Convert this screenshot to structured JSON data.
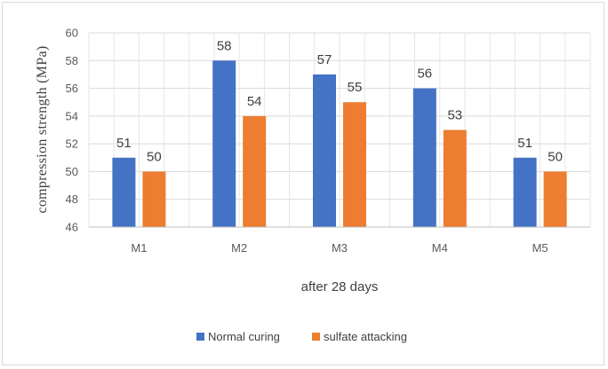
{
  "chart_data": {
    "type": "bar",
    "categories": [
      "M1",
      "M2",
      "M3",
      "M4",
      "M5"
    ],
    "series": [
      {
        "name": "Normal curing",
        "values": [
          51,
          58,
          57,
          56,
          51
        ],
        "color": "#4472c4"
      },
      {
        "name": "sulfate attacking",
        "values": [
          50,
          54,
          55,
          53,
          50
        ],
        "color": "#ed7d31"
      }
    ],
    "title": "",
    "xlabel": "after 28 days",
    "ylabel": "compression strength (MPa)",
    "ylim": [
      46,
      60
    ],
    "yticks": [
      46,
      48,
      50,
      52,
      54,
      56,
      58,
      60
    ],
    "grid": true,
    "legend_position": "bottom",
    "data_labels": true
  }
}
